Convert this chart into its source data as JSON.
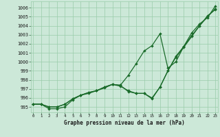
{
  "xlabel": "Graphe pression niveau de la mer (hPa)",
  "bg_color": "#cce8d8",
  "grid_color": "#99ccaa",
  "line_color": "#1a6b2a",
  "x_ticks": [
    0,
    1,
    2,
    3,
    4,
    5,
    6,
    7,
    8,
    9,
    10,
    11,
    12,
    13,
    14,
    15,
    16,
    17,
    18,
    19,
    20,
    21,
    22,
    23
  ],
  "y_ticks": [
    995,
    996,
    997,
    998,
    999,
    1000,
    1001,
    1002,
    1003,
    1004,
    1005,
    1006
  ],
  "xlim": [
    -0.3,
    23.3
  ],
  "ylim": [
    994.4,
    1006.7
  ],
  "line_upper": [
    995.3,
    995.3,
    995.0,
    995.0,
    995.3,
    995.9,
    996.3,
    996.6,
    996.8,
    997.2,
    997.5,
    997.4,
    998.5,
    999.8,
    1001.2,
    1001.8,
    1003.1,
    999.3,
    1000.0,
    1001.7,
    1003.2,
    1004.2,
    1004.9,
    1006.2
  ],
  "line_mid": [
    995.3,
    995.3,
    995.0,
    995.0,
    995.3,
    995.9,
    996.3,
    996.6,
    996.8,
    997.2,
    997.5,
    997.4,
    996.7,
    996.5,
    996.5,
    996.0,
    997.2,
    999.0,
    1000.6,
    1001.7,
    1002.9,
    1004.0,
    1005.0,
    1005.9
  ],
  "line_lower": [
    995.3,
    995.3,
    994.8,
    994.8,
    995.0,
    995.8,
    996.3,
    996.5,
    996.8,
    997.1,
    997.5,
    997.3,
    996.8,
    996.5,
    996.5,
    995.9,
    997.2,
    999.0,
    1000.5,
    1001.6,
    1002.8,
    1004.0,
    1005.1,
    1005.8
  ]
}
